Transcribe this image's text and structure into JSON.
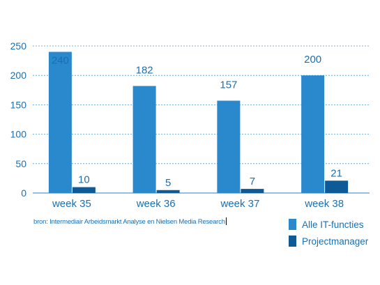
{
  "chart_data": {
    "type": "bar",
    "categories": [
      "week 35",
      "week 36",
      "week 37",
      "week 38"
    ],
    "series": [
      {
        "name": "Alle IT-functies",
        "values": [
          240,
          182,
          157,
          200
        ],
        "color": "#2a88cc"
      },
      {
        "name": "Projectmanager",
        "values": [
          10,
          5,
          7,
          21
        ],
        "color": "#0e5a96"
      }
    ],
    "ylim": [
      0,
      250
    ],
    "yticks": [
      "0",
      "50",
      "100",
      "150",
      "200",
      "250"
    ],
    "grid": true,
    "legend_position": "bottom-right"
  },
  "source_note": "bron: Intermediair Arbeidsmarkt Analyse en Nielsen Media Research"
}
